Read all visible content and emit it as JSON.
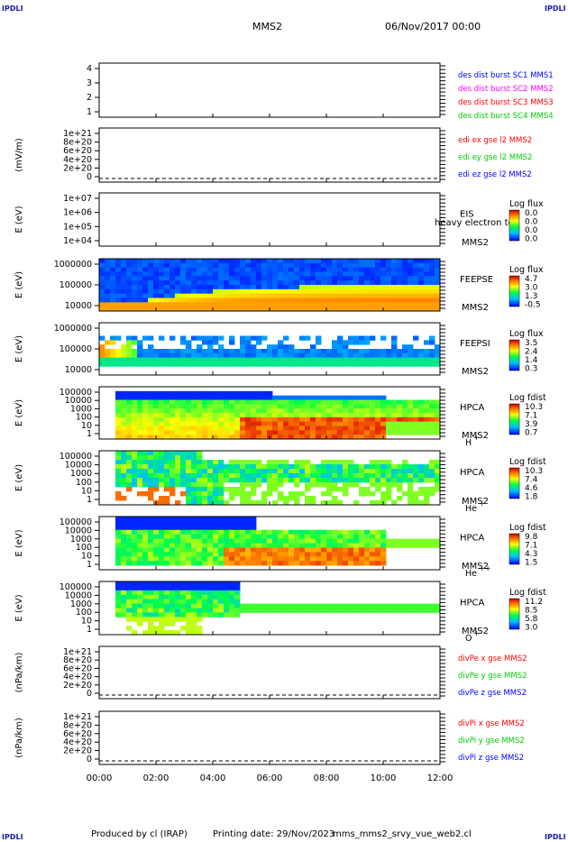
{
  "corners": {
    "label": "IPDLI"
  },
  "header": {
    "spacecraft": "MMS2",
    "date": "06/Nov/2017 00:00"
  },
  "footer": {
    "produced_by": "Produced by cl (IRAP)",
    "printing_date": "Printing date: 29/Nov/2023",
    "script": "mms_mms2_srvy_vue_web2.cl"
  },
  "colors": {
    "red": "#ff0000",
    "green": "#00cc00",
    "blue": "#0000ff",
    "magenta": "#ff00ff"
  },
  "chart_data": {
    "type": "heatmap",
    "x_ticks": [
      "00:00",
      "02:00",
      "04:00",
      "06:00",
      "08:00",
      "10:00",
      "12:00"
    ],
    "panels": [
      {
        "id": "des",
        "y_ticks": [
          "4",
          "3",
          "2",
          "1"
        ],
        "ylabel": "",
        "legend": [
          {
            "text": "des dist burst SC1 MMS1",
            "color": "#0000ff"
          },
          {
            "text": "des dist burst SC2 MMS2",
            "color": "#ff00ff"
          },
          {
            "text": "des dist burst SC3 MMS3",
            "color": "#ff0000"
          },
          {
            "text": "des dist burst SC4 MMS4",
            "color": "#00cc00"
          }
        ]
      },
      {
        "id": "edi",
        "y_ticks": [
          "1e+21",
          "8e+20",
          "6e+20",
          "4e+20",
          "2e+20",
          "0"
        ],
        "ylabel": "(mV/m)",
        "legend": [
          {
            "text": "edi ex gse l2 MMS2",
            "color": "#ff0000"
          },
          {
            "text": "edi ey gse l2 MMS2",
            "color": "#00cc00"
          },
          {
            "text": "edi ez gse l2 MMS2",
            "color": "#0000ff"
          }
        ]
      },
      {
        "id": "eis",
        "y_ticks": [
          "1e+07",
          "1e+06",
          "1e+05",
          "1e+04"
        ],
        "ylabel": "E (eV)",
        "instrument": "EIS",
        "sc": "MMS2",
        "overlay": "heavy electron to",
        "cb_title": "Log flux",
        "cb_ticks": [
          "0.0",
          "0.0",
          "0.0",
          "0.0"
        ]
      },
      {
        "id": "feepse",
        "y_ticks": [
          "1000000",
          "100000",
          "10000"
        ],
        "ylabel": "E (eV)",
        "instrument": "FEEPSE",
        "sc": "MMS2",
        "cb_title": "Log flux",
        "cb_ticks": [
          "4.7",
          "3.0",
          "1.3",
          "-0.5"
        ]
      },
      {
        "id": "feepsi",
        "y_ticks": [
          "1000000",
          "100000",
          "10000"
        ],
        "ylabel": "E (eV)",
        "instrument": "FEEPSI",
        "sc": "MMS2",
        "cb_title": "Log flux",
        "cb_ticks": [
          "3.5",
          "2.4",
          "1.4",
          "0.3"
        ]
      },
      {
        "id": "hpca_h",
        "y_ticks": [
          "100000",
          "10000",
          "1000",
          "100",
          "10",
          "1"
        ],
        "ylabel": "E (eV)",
        "instrument": "HPCA",
        "sc": "MMS2",
        "species": "H",
        "charge": "+",
        "cb_title": "Log fdist",
        "cb_ticks": [
          "10.3",
          "7.1",
          "3.9",
          "0.7"
        ]
      },
      {
        "id": "hpca_he",
        "y_ticks": [
          "100000",
          "10000",
          "1000",
          "100",
          "10",
          "1"
        ],
        "ylabel": "E (eV)",
        "instrument": "HPCA",
        "sc": "MMS2",
        "species": "He",
        "charge": "+",
        "cb_title": "Log fdist",
        "cb_ticks": [
          "10.3",
          "7.4",
          "4.6",
          "1.8"
        ]
      },
      {
        "id": "hpca_he2",
        "y_ticks": [
          "100000",
          "10000",
          "1000",
          "100",
          "10",
          "1"
        ],
        "ylabel": "E (eV)",
        "instrument": "HPCA",
        "sc": "MMS2",
        "species": "He",
        "charge": "++",
        "cb_title": "Log fdist",
        "cb_ticks": [
          "9.8",
          "7.1",
          "4.3",
          "1.5"
        ]
      },
      {
        "id": "hpca_o",
        "y_ticks": [
          "100000",
          "10000",
          "1000",
          "100",
          "10",
          "1"
        ],
        "ylabel": "E (eV)",
        "instrument": "HPCA",
        "sc": "MMS2",
        "species": "O",
        "charge": "+",
        "cb_title": "Log fdist",
        "cb_ticks": [
          "11.2",
          "8.5",
          "5.8",
          "3.0"
        ]
      },
      {
        "id": "divpe",
        "y_ticks": [
          "1e+21",
          "8e+20",
          "6e+20",
          "4e+20",
          "2e+20",
          "0"
        ],
        "ylabel": "(nPa/km)",
        "legend": [
          {
            "text": "divPe x gse MMS2",
            "color": "#ff0000"
          },
          {
            "text": "divPe y gse MMS2",
            "color": "#00cc00"
          },
          {
            "text": "divPe z gse MMS2",
            "color": "#0000ff"
          }
        ]
      },
      {
        "id": "divpi",
        "y_ticks": [
          "1e+21",
          "8e+20",
          "6e+20",
          "4e+20",
          "2e+20",
          "0"
        ],
        "ylabel": "(nPa/km)",
        "legend": [
          {
            "text": "divPi x gse MMS2",
            "color": "#ff0000"
          },
          {
            "text": "divPi y gse MMS2",
            "color": "#00cc00"
          },
          {
            "text": "divPi z gse MMS2",
            "color": "#0000ff"
          }
        ]
      }
    ]
  }
}
